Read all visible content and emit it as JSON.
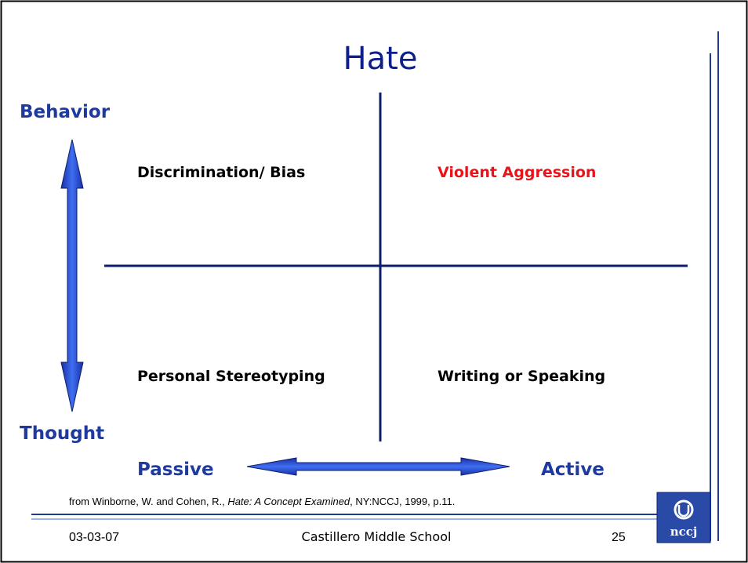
{
  "title": "Hate",
  "axes": {
    "top": "Behavior",
    "bottom": "Thought",
    "left": "Passive",
    "right": "Active"
  },
  "quadrants": {
    "top_left": "Discrimination/ Bias",
    "top_right": "Violent Aggression",
    "bottom_left": "Personal Stereotyping",
    "bottom_right": "Writing or Speaking"
  },
  "citation": {
    "prefix": "from Winborne, W. and Cohen, R., ",
    "title": "Hate: A Concept Examined",
    "suffix": ", NY:NCCJ, 1999, p.11."
  },
  "footer": {
    "date": "03-03-07",
    "school": "Castillero Middle School",
    "page": "25"
  },
  "logo": {
    "text": "nccj"
  }
}
